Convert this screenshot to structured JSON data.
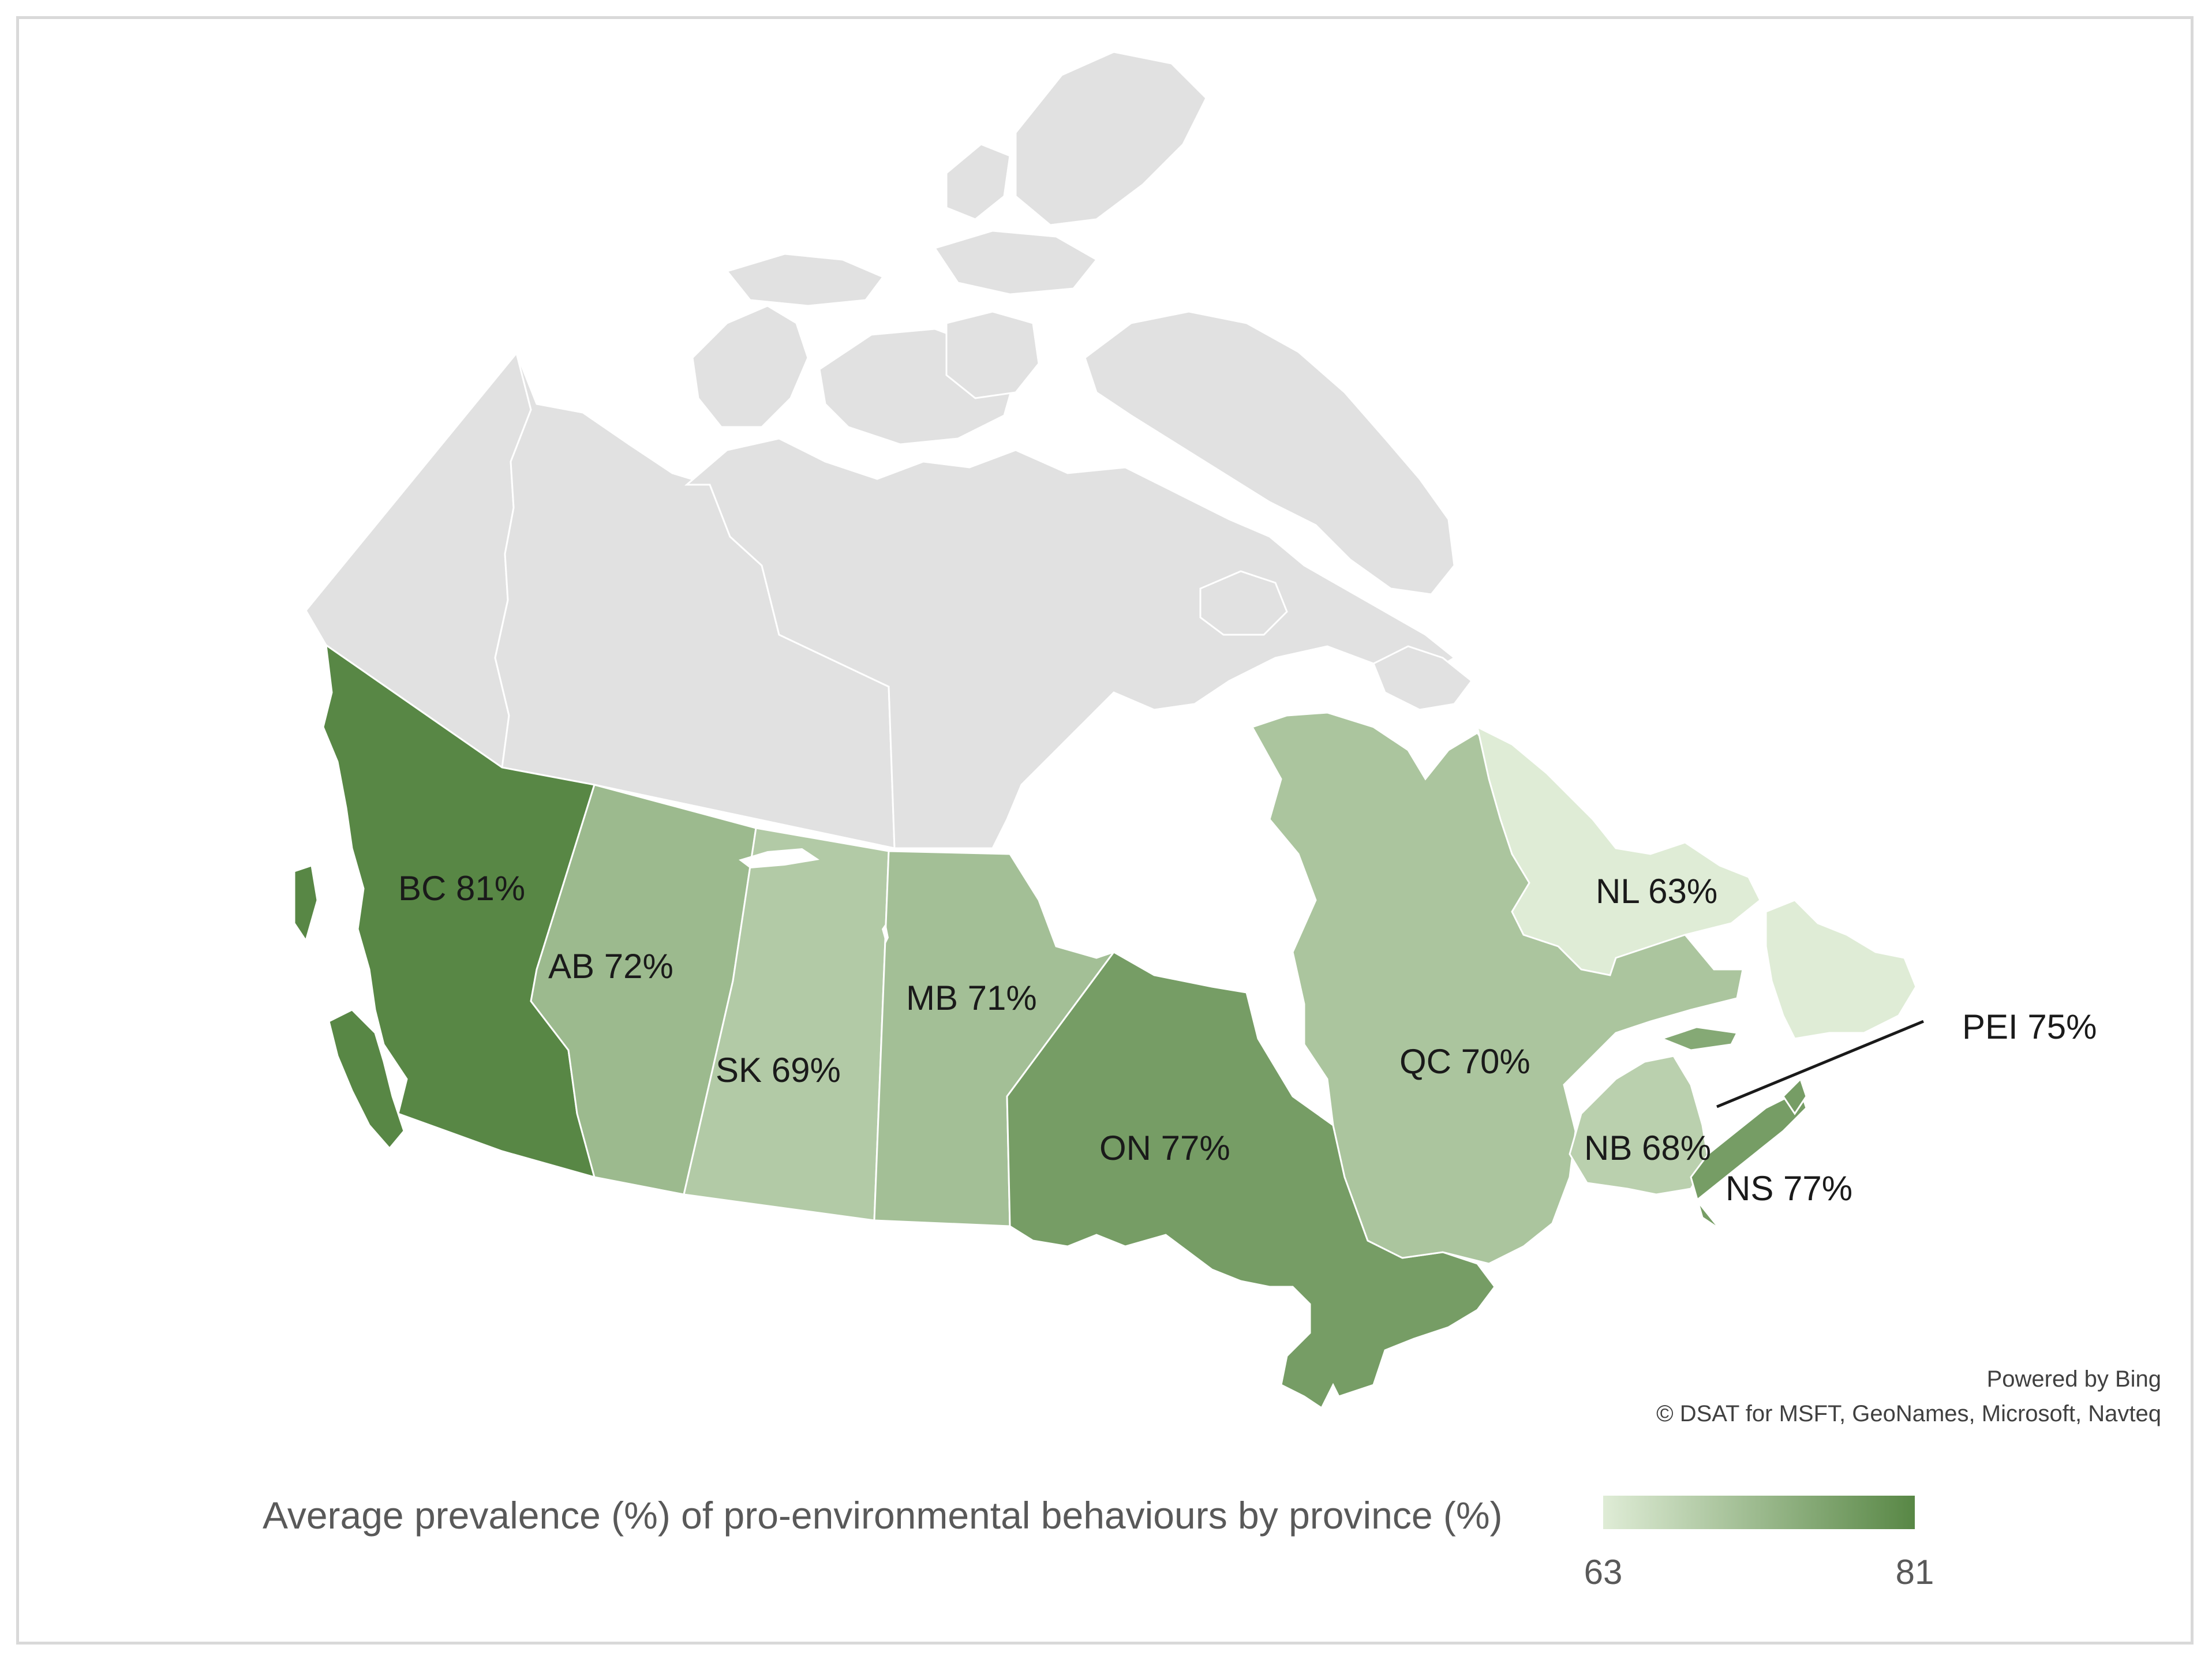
{
  "legend": {
    "title": "Average prevalence (%) of pro-environmental behaviours by province (%)",
    "min": 63,
    "max": 81,
    "min_color": "#dfecd6",
    "max_color": "#588745"
  },
  "attribution": {
    "line1": "Powered by Bing",
    "line2": "© DSAT for MSFT, GeoNames, Microsoft, Navteq"
  },
  "colors": {
    "territory_gray": "#e1e1e1",
    "border": "#ffffff",
    "frame": "#d9d9d9"
  },
  "chart_data": {
    "type": "choropleth",
    "region": "Canada",
    "unit": "%",
    "provinces": [
      {
        "code": "BC",
        "label": "BC 81%",
        "value": 81
      },
      {
        "code": "AB",
        "label": "AB 72%",
        "value": 72
      },
      {
        "code": "SK",
        "label": "SK 69%",
        "value": 69
      },
      {
        "code": "MB",
        "label": "MB 71%",
        "value": 71
      },
      {
        "code": "ON",
        "label": "ON 77%",
        "value": 77
      },
      {
        "code": "QC",
        "label": "QC 70%",
        "value": 70
      },
      {
        "code": "NB",
        "label": "NB 68%",
        "value": 68
      },
      {
        "code": "NS",
        "label": "NS 77%",
        "value": 77
      },
      {
        "code": "PEI",
        "label": "PEI 75%",
        "value": 75
      },
      {
        "code": "NL",
        "label": "NL 63%",
        "value": 63
      }
    ],
    "no_data_regions": [
      "YT",
      "NT",
      "NU"
    ]
  }
}
